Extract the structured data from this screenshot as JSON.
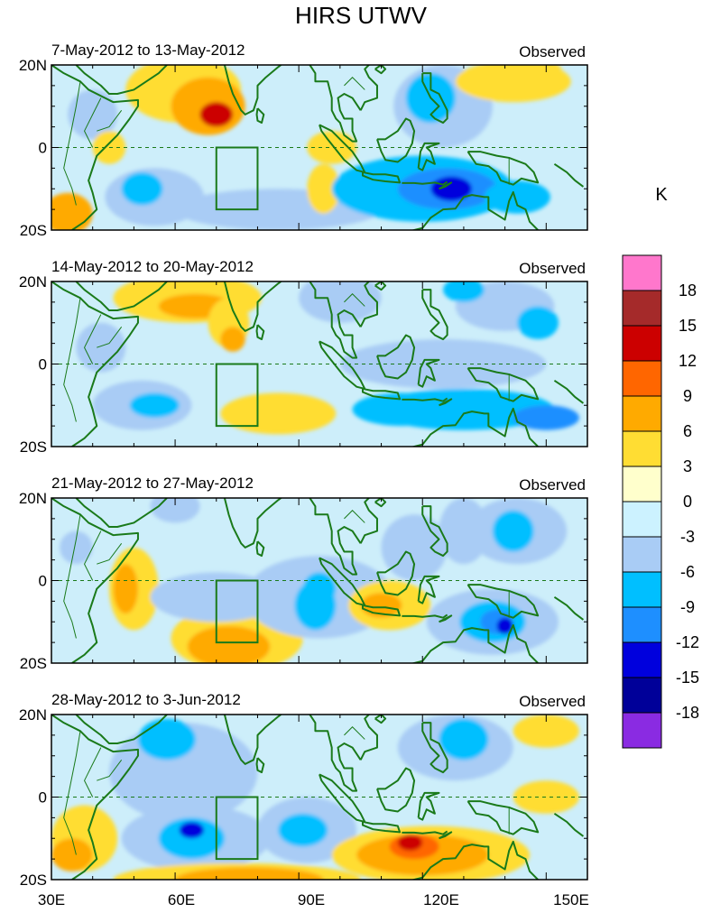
{
  "title": "HIRS UTWV",
  "panels": [
    {
      "period": "7-May-2012 to 13-May-2012",
      "tag": "Observed"
    },
    {
      "period": "14-May-2012 to 20-May-2012",
      "tag": "Observed"
    },
    {
      "period": "21-May-2012 to 27-May-2012",
      "tag": "Observed"
    },
    {
      "period": "28-May-2012 to 3-Jun-2012",
      "tag": "Observed"
    }
  ],
  "lat_labels": [
    "20N",
    "0",
    "20S"
  ],
  "lon_labels": [
    "30E",
    "60E",
    "90E",
    "120E",
    "150E"
  ],
  "colorbar": {
    "unit": "K",
    "levels": [
      "18",
      "15",
      "12",
      "9",
      "6",
      "3",
      "0",
      "-3",
      "-6",
      "-9",
      "-12",
      "-15",
      "-18"
    ],
    "colors": [
      "#ff77cc",
      "#a52a2a",
      "#cc0000",
      "#ff6600",
      "#ffaa00",
      "#ffdd33",
      "#ffffcc",
      "#ccf2ff",
      "#a9ccf5",
      "#00bfff",
      "#1e8fff",
      "#0000dd",
      "#000099",
      "#8a2be2"
    ]
  },
  "colors": {
    "coast": "#1a7a1a",
    "ocean": "#cdeefa"
  }
}
